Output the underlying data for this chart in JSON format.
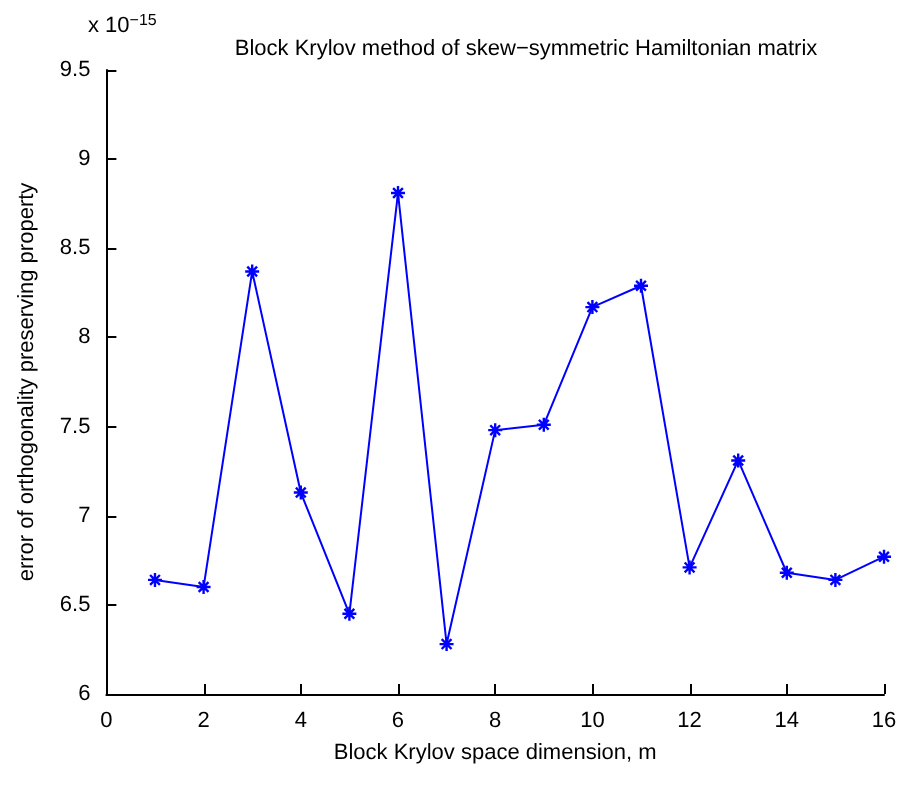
{
  "chart_data": {
    "type": "line",
    "title": "Block Krylov method of skew−symmetric Hamiltonian matrix",
    "xlabel": "Block Krylov space dimension, m",
    "ylabel": "error of orthogonality preserving property",
    "annotations": [
      "x 10$^{−15}$"
    ],
    "x": [
      1,
      2,
      3,
      4,
      5,
      6,
      7,
      8,
      9,
      10,
      11,
      12,
      13,
      14,
      15,
      16
    ],
    "series": [
      {
        "color": "#0000ff",
        "values": [
          6.64,
          6.6,
          8.37,
          7.13,
          6.45,
          8.81,
          6.28,
          7.48,
          7.51,
          8.17,
          8.29,
          6.71,
          7.31,
          6.68,
          6.64,
          6.77
        ]
      }
    ],
    "xlim": [
      0,
      16
    ],
    "xticks": [
      0,
      2,
      4,
      6,
      8,
      10,
      12,
      14,
      16
    ],
    "ylim": [
      6,
      9.5
    ],
    "yticks": [
      6,
      6.5,
      7,
      7.5,
      8,
      8.5,
      9,
      9.5
    ],
    "grid": false,
    "marker": "cross",
    "line_style": "solid"
  }
}
